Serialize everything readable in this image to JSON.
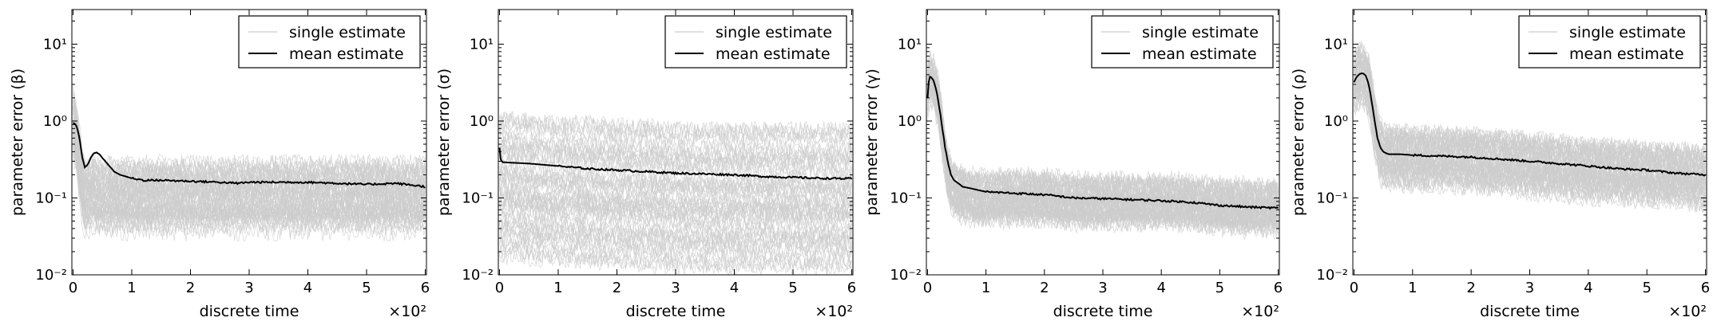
{
  "chart_data": [
    {
      "type": "line",
      "ylabel": "parameter error (β)",
      "xlabel": "discrete time",
      "x_multiplier_label": "×10²",
      "xlim": [
        -2,
        6.02
      ],
      "ylim_log10": [
        -2,
        1.45
      ],
      "yscale": "log",
      "x_ticks": [
        "0",
        "1",
        "2",
        "3",
        "4",
        "5",
        "6"
      ],
      "y_ticks": [
        "10⁻²",
        "10⁻¹",
        "10⁰",
        "10¹"
      ],
      "legend": {
        "position": "top-right",
        "entries": [
          "single estimate",
          "mean estimate"
        ]
      },
      "series": [
        {
          "name": "mean estimate",
          "color": "#000000",
          "x": [
            0,
            0.05,
            0.1,
            0.15,
            0.2,
            0.25,
            0.3,
            0.35,
            0.4,
            0.45,
            0.5,
            0.6,
            0.7,
            0.8,
            0.9,
            1.0,
            1.2,
            1.5,
            2.0,
            2.5,
            2.8,
            3.0,
            3.5,
            4.0,
            4.5,
            5.0,
            5.5,
            6.0
          ],
          "y": [
            0.95,
            0.9,
            0.65,
            0.35,
            0.25,
            0.27,
            0.33,
            0.38,
            0.39,
            0.37,
            0.33,
            0.27,
            0.22,
            0.2,
            0.19,
            0.18,
            0.17,
            0.17,
            0.165,
            0.16,
            0.155,
            0.16,
            0.16,
            0.16,
            0.155,
            0.15,
            0.155,
            0.14
          ]
        },
        {
          "name": "single estimate",
          "color": "#cccccc",
          "band": true,
          "y_center": [
            0.9,
            0.6,
            0.3,
            0.15,
            0.1,
            0.1,
            0.11,
            0.12,
            0.1,
            0.1,
            0.1,
            0.1,
            0.1,
            0.1,
            0.1,
            0.1,
            0.1,
            0.1,
            0.1,
            0.1,
            0.1,
            0.1,
            0.1,
            0.1,
            0.1,
            0.1,
            0.1,
            0.1
          ],
          "y_spread_log10": 0.45
        }
      ]
    },
    {
      "type": "line",
      "ylabel": "parameter error (σ)",
      "xlabel": "discrete time",
      "x_multiplier_label": "×10²",
      "xlim": [
        -2,
        6.02
      ],
      "ylim_log10": [
        -2,
        1.45
      ],
      "yscale": "log",
      "x_ticks": [
        "0",
        "1",
        "2",
        "3",
        "4",
        "5",
        "6"
      ],
      "y_ticks": [
        "10⁻²",
        "10⁻¹",
        "10⁰",
        "10¹"
      ],
      "legend": {
        "position": "top-right",
        "entries": [
          "single estimate",
          "mean estimate"
        ]
      },
      "series": [
        {
          "name": "mean estimate",
          "color": "#000000",
          "x": [
            0,
            0.02,
            0.05,
            0.1,
            0.5,
            1.0,
            1.5,
            2.0,
            2.5,
            3.0,
            3.5,
            4.0,
            4.5,
            5.0,
            5.5,
            6.0
          ],
          "y": [
            0.45,
            0.32,
            0.29,
            0.29,
            0.28,
            0.26,
            0.24,
            0.23,
            0.22,
            0.21,
            0.205,
            0.2,
            0.19,
            0.185,
            0.18,
            0.178
          ]
        },
        {
          "name": "single estimate",
          "color": "#cccccc",
          "band": true,
          "y_center": [
            0.15,
            0.14,
            0.14,
            0.14,
            0.13,
            0.12,
            0.12,
            0.11,
            0.11,
            0.1,
            0.1,
            0.1,
            0.1,
            0.1,
            0.1,
            0.1
          ],
          "y_spread_log10": 0.9
        }
      ]
    },
    {
      "type": "line",
      "ylabel": "parameter error (γ)",
      "xlabel": "discrete time",
      "x_multiplier_label": "×10²",
      "xlim": [
        -2,
        6.02
      ],
      "ylim_log10": [
        -2,
        1.45
      ],
      "yscale": "log",
      "x_ticks": [
        "0",
        "1",
        "2",
        "3",
        "4",
        "5",
        "6"
      ],
      "y_ticks": [
        "10⁻²",
        "10⁻¹",
        "10⁰",
        "10¹"
      ],
      "legend": {
        "position": "top-right",
        "entries": [
          "single estimate",
          "mean estimate"
        ]
      },
      "series": [
        {
          "name": "mean estimate",
          "color": "#000000",
          "x": [
            0,
            0.03,
            0.06,
            0.1,
            0.15,
            0.2,
            0.25,
            0.3,
            0.35,
            0.4,
            0.45,
            0.5,
            0.6,
            0.8,
            1.0,
            1.5,
            2.0,
            2.5,
            3.0,
            3.5,
            4.0,
            4.5,
            5.0,
            5.5,
            6.0
          ],
          "y": [
            2.0,
            3.8,
            3.7,
            3.4,
            2.5,
            1.5,
            0.8,
            0.45,
            0.28,
            0.2,
            0.17,
            0.16,
            0.14,
            0.13,
            0.12,
            0.115,
            0.11,
            0.1,
            0.098,
            0.095,
            0.092,
            0.088,
            0.08,
            0.076,
            0.074
          ]
        },
        {
          "name": "single estimate",
          "color": "#cccccc",
          "band": true,
          "y_center": [
            2.5,
            3.5,
            3.5,
            3.2,
            2.3,
            1.4,
            0.7,
            0.35,
            0.2,
            0.15,
            0.13,
            0.12,
            0.11,
            0.1,
            0.1,
            0.1,
            0.1,
            0.09,
            0.09,
            0.09,
            0.09,
            0.085,
            0.08,
            0.075,
            0.075
          ],
          "y_spread_log10": 0.3
        }
      ]
    },
    {
      "type": "line",
      "ylabel": "parameter error (ρ)",
      "xlabel": "discrete time",
      "x_multiplier_label": "×10²",
      "xlim": [
        -2,
        6.02
      ],
      "ylim_log10": [
        -2,
        1.45
      ],
      "yscale": "log",
      "x_ticks": [
        "0",
        "1",
        "2",
        "3",
        "4",
        "5",
        "6"
      ],
      "y_ticks": [
        "10⁻²",
        "10⁻¹",
        "10⁰",
        "10¹"
      ],
      "legend": {
        "position": "top-right",
        "entries": [
          "single estimate",
          "mean estimate"
        ]
      },
      "series": [
        {
          "name": "mean estimate",
          "color": "#000000",
          "x": [
            0,
            0.05,
            0.1,
            0.15,
            0.2,
            0.25,
            0.3,
            0.35,
            0.4,
            0.45,
            0.5,
            0.55,
            0.6,
            0.8,
            1.0,
            1.5,
            2.0,
            2.5,
            3.0,
            3.5,
            4.0,
            4.5,
            5.0,
            5.5,
            6.0
          ],
          "y": [
            3.2,
            3.8,
            4.1,
            4.2,
            3.9,
            3.0,
            1.8,
            1.0,
            0.6,
            0.45,
            0.4,
            0.38,
            0.37,
            0.37,
            0.36,
            0.35,
            0.34,
            0.32,
            0.3,
            0.28,
            0.26,
            0.24,
            0.23,
            0.21,
            0.2
          ]
        },
        {
          "name": "single estimate",
          "color": "#cccccc",
          "band": true,
          "y_center": [
            3.0,
            3.5,
            3.8,
            3.9,
            3.6,
            2.8,
            1.6,
            0.9,
            0.55,
            0.4,
            0.35,
            0.33,
            0.33,
            0.33,
            0.32,
            0.31,
            0.3,
            0.28,
            0.26,
            0.24,
            0.22,
            0.21,
            0.2,
            0.19,
            0.18
          ],
          "y_spread_log10": 0.35
        }
      ]
    }
  ]
}
